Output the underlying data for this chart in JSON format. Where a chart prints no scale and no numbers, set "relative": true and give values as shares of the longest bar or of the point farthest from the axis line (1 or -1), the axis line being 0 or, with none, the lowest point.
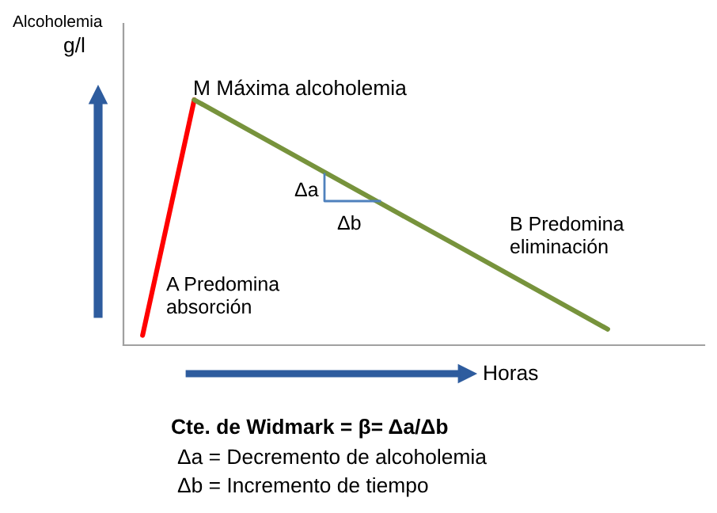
{
  "chart_data": {
    "type": "line",
    "relative": true,
    "categories": [
      null,
      null,
      null,
      null,
      null,
      null,
      null,
      null,
      null,
      null
    ],
    "series": [
      {
        "color": "#ff0000",
        "values": [
          0.04,
          1,
          null,
          null,
          null,
          null,
          null,
          null,
          null,
          null
        ]
      },
      {
        "color": "#77933c",
        "values": [
          null,
          1,
          0.883,
          0.766,
          0.649,
          0.532,
          0.416,
          0.299,
          0.182,
          0.065
        ]
      }
    ],
    "annotations": [
      "Alcoholemia",
      "g/l",
      "M Máxima alcoholemia",
      "Δa",
      "Δb",
      "B Predomina\neliminación",
      "A Predomina\nabsorción",
      "Horas",
      "Cte. de Widmark = β= Δa/Δb",
      "Δa = Decremento de alcoholemia",
      "Δb = Incremento de tiempo"
    ],
    "legend": false
  }
}
